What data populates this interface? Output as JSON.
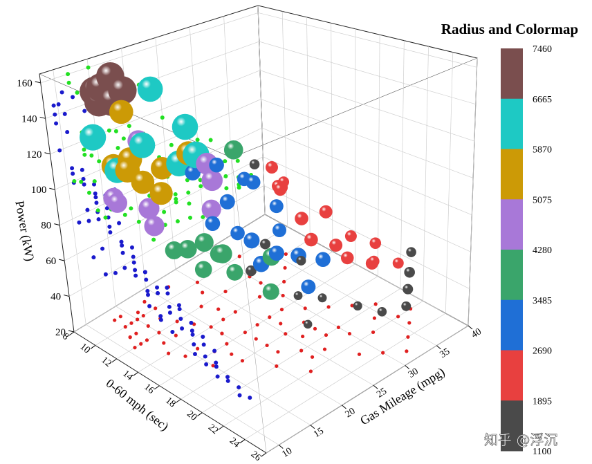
{
  "chart_data": {
    "type": "scatter",
    "subtype": "3d-bubble",
    "axes": {
      "x": {
        "label": "0-60 mph (sec)",
        "ticks": [
          8,
          10,
          12,
          14,
          16,
          18,
          20,
          22,
          24,
          26
        ],
        "range": [
          8,
          26
        ]
      },
      "y": {
        "label": "Gas Mileage (mpg)",
        "ticks": [
          10,
          15,
          20,
          25,
          30,
          35,
          40
        ],
        "range": [
          8,
          40
        ]
      },
      "z": {
        "label": "Power (kW)",
        "ticks": [
          20,
          40,
          60,
          80,
          100,
          120,
          140,
          160
        ],
        "range": [
          20,
          170
        ]
      }
    },
    "colorbar": {
      "title": "Radius and Colormap",
      "ticks": [
        "7460",
        "6665",
        "5870",
        "5075",
        "4280",
        "3485",
        "2690",
        "1895",
        "1100"
      ],
      "colors": [
        "#7a4e4e",
        "#1ec9c4",
        "#cc9a06",
        "#a878d8",
        "#3aa56b",
        "#1f6fd6",
        "#e8403f",
        "#4a4a4a"
      ]
    },
    "projections": {
      "back_wall_xz": {
        "color": "#1a1acc",
        "meaning": "Power vs 0-60 mph"
      },
      "side_wall_yz": {
        "color": "#22e022",
        "meaning": "Power vs Gas Mileage"
      },
      "floor_xy": {
        "color": "#e02020",
        "meaning": "Gas Mileage vs 0-60 mph"
      }
    },
    "points": [
      {
        "x": 9,
        "y": 14,
        "z": 150,
        "w": 7200
      },
      {
        "x": 10,
        "y": 13,
        "z": 148,
        "w": 7100
      },
      {
        "x": 9.5,
        "y": 16,
        "z": 152,
        "w": 7000
      },
      {
        "x": 11,
        "y": 12,
        "z": 160,
        "w": 6900
      },
      {
        "x": 10,
        "y": 15,
        "z": 160,
        "w": 6800
      },
      {
        "x": 12,
        "y": 12,
        "z": 155,
        "w": 7300
      },
      {
        "x": 9,
        "y": 18,
        "z": 145,
        "w": 6900
      },
      {
        "x": 10,
        "y": 16,
        "z": 138,
        "w": 5600
      },
      {
        "x": 11,
        "y": 17,
        "z": 120,
        "w": 6100
      },
      {
        "x": 9,
        "y": 13,
        "z": 125,
        "w": 6300
      },
      {
        "x": 10,
        "y": 14,
        "z": 110,
        "w": 5500
      },
      {
        "x": 11,
        "y": 15,
        "z": 115,
        "w": 5700
      },
      {
        "x": 10,
        "y": 18,
        "z": 118,
        "w": 4900
      },
      {
        "x": 11,
        "y": 13,
        "z": 112,
        "w": 6000
      },
      {
        "x": 12,
        "y": 15,
        "z": 105,
        "w": 5400
      },
      {
        "x": 12,
        "y": 13,
        "z": 115,
        "w": 5800
      },
      {
        "x": 13,
        "y": 16,
        "z": 100,
        "w": 5300
      },
      {
        "x": 12,
        "y": 18,
        "z": 108,
        "w": 5200
      },
      {
        "x": 13,
        "y": 14,
        "z": 95,
        "w": 4700
      },
      {
        "x": 14,
        "y": 13,
        "z": 90,
        "w": 4500
      },
      {
        "x": 11,
        "y": 12,
        "z": 98,
        "w": 4600
      },
      {
        "x": 12,
        "y": 11,
        "z": 100,
        "w": 4400
      },
      {
        "x": 13,
        "y": 19,
        "z": 112,
        "w": 6200
      },
      {
        "x": 14,
        "y": 20,
        "z": 118,
        "w": 6400
      },
      {
        "x": 9,
        "y": 22,
        "z": 140,
        "w": 6000
      },
      {
        "x": 10,
        "y": 25,
        "z": 115,
        "w": 6200
      },
      {
        "x": 12,
        "y": 22,
        "z": 110,
        "w": 5600
      },
      {
        "x": 14,
        "y": 22,
        "z": 100,
        "w": 4800
      },
      {
        "x": 13,
        "y": 23,
        "z": 105,
        "w": 5000
      },
      {
        "x": 15,
        "y": 20,
        "z": 90,
        "w": 4300
      },
      {
        "x": 15,
        "y": 16,
        "z": 75,
        "w": 4000
      },
      {
        "x": 16,
        "y": 17,
        "z": 80,
        "w": 4100
      },
      {
        "x": 17,
        "y": 18,
        "z": 75,
        "w": 4200
      },
      {
        "x": 16,
        "y": 19,
        "z": 70,
        "w": 3800
      },
      {
        "x": 15,
        "y": 14,
        "z": 78,
        "w": 3900
      },
      {
        "x": 17,
        "y": 15,
        "z": 72,
        "w": 3600
      },
      {
        "x": 18,
        "y": 18,
        "z": 68,
        "w": 3500
      },
      {
        "x": 19,
        "y": 22,
        "z": 72,
        "w": 3800
      },
      {
        "x": 18,
        "y": 22,
        "z": 65,
        "w": 3400
      },
      {
        "x": 16,
        "y": 24,
        "z": 68,
        "w": 3300
      },
      {
        "x": 20,
        "y": 20,
        "z": 60,
        "w": 3500
      },
      {
        "x": 19,
        "y": 26,
        "z": 65,
        "w": 3200
      },
      {
        "x": 17,
        "y": 26,
        "z": 60,
        "w": 3100
      },
      {
        "x": 20,
        "y": 28,
        "z": 62,
        "w": 3000
      },
      {
        "x": 21,
        "y": 24,
        "z": 58,
        "w": 2900
      },
      {
        "x": 15,
        "y": 20,
        "z": 82,
        "w": 3000
      },
      {
        "x": 16,
        "y": 22,
        "z": 76,
        "w": 2800
      },
      {
        "x": 14,
        "y": 24,
        "z": 84,
        "w": 3100
      },
      {
        "x": 18,
        "y": 25,
        "z": 78,
        "w": 2700
      },
      {
        "x": 19,
        "y": 28,
        "z": 70,
        "w": 2600
      },
      {
        "x": 20,
        "y": 30,
        "z": 66,
        "w": 2500
      },
      {
        "x": 21,
        "y": 30,
        "z": 62,
        "w": 2400
      },
      {
        "x": 22,
        "y": 32,
        "z": 58,
        "w": 2300
      },
      {
        "x": 17,
        "y": 30,
        "z": 72,
        "w": 2600
      },
      {
        "x": 16,
        "y": 28,
        "z": 80,
        "w": 2700
      },
      {
        "x": 18,
        "y": 32,
        "z": 75,
        "w": 2500
      },
      {
        "x": 15,
        "y": 30,
        "z": 85,
        "w": 2200
      },
      {
        "x": 14,
        "y": 28,
        "z": 88,
        "w": 2900
      },
      {
        "x": 19,
        "y": 34,
        "z": 60,
        "w": 2100
      },
      {
        "x": 20,
        "y": 36,
        "z": 55,
        "w": 2000
      },
      {
        "x": 21,
        "y": 34,
        "z": 52,
        "w": 1950
      },
      {
        "x": 22,
        "y": 36,
        "z": 50,
        "w": 1900
      },
      {
        "x": 23,
        "y": 36,
        "z": 48,
        "w": 1800
      },
      {
        "x": 24,
        "y": 34,
        "z": 46,
        "w": 1700
      },
      {
        "x": 22,
        "y": 38,
        "z": 52,
        "w": 1600
      },
      {
        "x": 25,
        "y": 32,
        "z": 44,
        "w": 1500
      },
      {
        "x": 24,
        "y": 30,
        "z": 42,
        "w": 1400
      },
      {
        "x": 23,
        "y": 28,
        "z": 46,
        "w": 1350
      },
      {
        "x": 21,
        "y": 26,
        "z": 48,
        "w": 1300
      },
      {
        "x": 20,
        "y": 24,
        "z": 50,
        "w": 1250
      },
      {
        "x": 22,
        "y": 22,
        "z": 45,
        "w": 1200
      },
      {
        "x": 18,
        "y": 28,
        "z": 55,
        "w": 1500
      },
      {
        "x": 17,
        "y": 22,
        "z": 58,
        "w": 1800
      },
      {
        "x": 16,
        "y": 26,
        "z": 62,
        "w": 1700
      },
      {
        "x": 13,
        "y": 30,
        "z": 92,
        "w": 1600
      },
      {
        "x": 12,
        "y": 26,
        "z": 96,
        "w": 3000
      },
      {
        "x": 11,
        "y": 24,
        "z": 92,
        "w": 3200
      },
      {
        "x": 12,
        "y": 30,
        "z": 80,
        "w": 2800
      },
      {
        "x": 13,
        "y": 34,
        "z": 70,
        "w": 2000
      },
      {
        "x": 14,
        "y": 32,
        "z": 76,
        "w": 2400
      },
      {
        "x": 10,
        "y": 32,
        "z": 88,
        "w": 4200
      },
      {
        "x": 11,
        "y": 36,
        "z": 72,
        "w": 2300
      },
      {
        "x": 12,
        "y": 36,
        "z": 66,
        "w": 1900
      }
    ]
  },
  "watermark": "知乎 @浮沉"
}
